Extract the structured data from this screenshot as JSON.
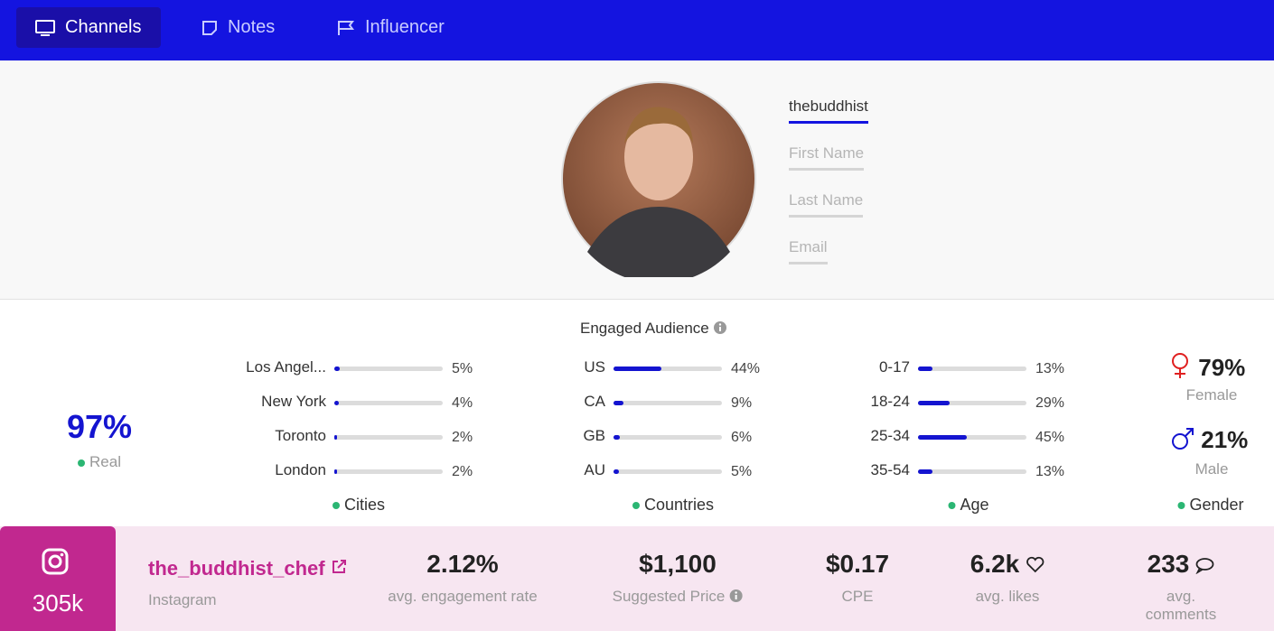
{
  "nav": {
    "tabs": [
      "Channels",
      "Notes",
      "Influencer"
    ]
  },
  "profile": {
    "username": "thebuddhist",
    "fields": [
      "First Name",
      "Last Name",
      "Email"
    ]
  },
  "audience": {
    "title": "Engaged Audience",
    "real": {
      "value": "97%",
      "label": "Real"
    },
    "groups": [
      {
        "label": "Cities",
        "items": [
          {
            "name": "Los Angel...",
            "value": 5,
            "label": "5%"
          },
          {
            "name": "New York",
            "value": 4,
            "label": "4%"
          },
          {
            "name": "Toronto",
            "value": 2,
            "label": "2%"
          },
          {
            "name": "London",
            "value": 2,
            "label": "2%"
          }
        ]
      },
      {
        "label": "Countries",
        "items": [
          {
            "name": "US",
            "value": 44,
            "label": "44%"
          },
          {
            "name": "CA",
            "value": 9,
            "label": "9%"
          },
          {
            "name": "GB",
            "value": 6,
            "label": "6%"
          },
          {
            "name": "AU",
            "value": 5,
            "label": "5%"
          }
        ]
      },
      {
        "label": "Age",
        "items": [
          {
            "name": "0-17",
            "value": 13,
            "label": "13%"
          },
          {
            "name": "18-24",
            "value": 29,
            "label": "29%"
          },
          {
            "name": "25-34",
            "value": 45,
            "label": "45%"
          },
          {
            "name": "35-54",
            "value": 13,
            "label": "13%"
          }
        ]
      }
    ],
    "gender": {
      "label": "Gender",
      "items": [
        {
          "value": "79%",
          "label": "Female"
        },
        {
          "value": "21%",
          "label": "Male"
        }
      ]
    }
  },
  "channel": {
    "followers": "305k",
    "handle": "the_buddhist_chef",
    "platform": "Instagram",
    "stats": [
      {
        "value": "2.12%",
        "label": "avg. engagement rate"
      },
      {
        "value": "$1,100",
        "label": "Suggested Price"
      },
      {
        "value": "$0.17",
        "label": "CPE"
      },
      {
        "value": "6.2k",
        "label": "avg. likes"
      },
      {
        "value": "233",
        "label": "avg. comments"
      }
    ]
  }
}
